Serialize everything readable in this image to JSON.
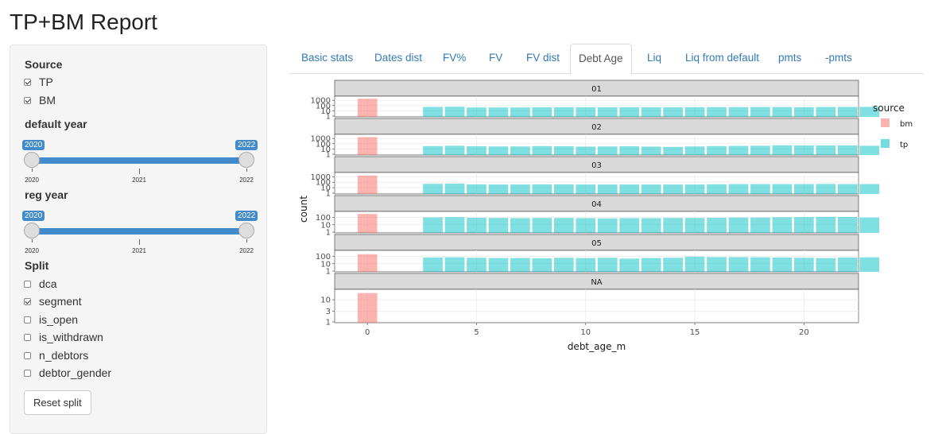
{
  "title": "TP+BM Report",
  "sidebar": {
    "source_label": "Source",
    "sources": [
      {
        "label": "TP",
        "checked": true
      },
      {
        "label": "BM",
        "checked": true
      }
    ],
    "default_year": {
      "label": "default year",
      "min": 2020,
      "max": 2022,
      "from": "2020",
      "to": "2022",
      "ticks": [
        "2020",
        "2021",
        "2022"
      ]
    },
    "reg_year": {
      "label": "reg year",
      "min": 2020,
      "max": 2022,
      "from": "2020",
      "to": "2022",
      "ticks": [
        "2020",
        "2021",
        "2022"
      ]
    },
    "split_label": "Split",
    "splits": [
      {
        "label": "dca",
        "checked": false
      },
      {
        "label": "segment",
        "checked": true
      },
      {
        "label": "is_open",
        "checked": false
      },
      {
        "label": "is_withdrawn",
        "checked": false
      },
      {
        "label": "n_debtors",
        "checked": false
      },
      {
        "label": "debtor_gender",
        "checked": false
      }
    ],
    "reset_label": "Reset split"
  },
  "tabs": [
    {
      "label": "Basic stats",
      "active": false
    },
    {
      "label": "Dates dist",
      "active": false
    },
    {
      "label": "FV%",
      "active": false
    },
    {
      "label": "FV",
      "active": false
    },
    {
      "label": "FV dist",
      "active": false
    },
    {
      "label": "Debt Age",
      "active": true
    },
    {
      "label": "Liq",
      "active": false
    },
    {
      "label": "Liq from default",
      "active": false
    },
    {
      "label": "pmts",
      "active": false
    },
    {
      "label": "-pmts",
      "active": false
    }
  ],
  "chart_data": {
    "type": "bar",
    "xlabel": "debt_age_m",
    "ylabel": "count",
    "x_ticks": [
      0,
      5,
      10,
      15,
      20
    ],
    "xlim": [
      -1.5,
      22.5
    ],
    "y_scale": "log10",
    "legend": {
      "title": "source",
      "position": "right",
      "entries": [
        {
          "name": "bm",
          "color": "#f8766d"
        },
        {
          "name": "tp",
          "color": "#00bfc4"
        }
      ]
    },
    "facets": [
      {
        "label": "01",
        "y_ticks": [
          "1",
          "10",
          "100",
          "1000"
        ],
        "ylim": [
          1,
          3000
        ],
        "bm": [
          {
            "x": 0,
            "y": 2000
          }
        ],
        "tp": [
          55,
          60,
          42,
          42,
          42,
          45,
          48,
          45,
          45,
          48,
          45,
          45,
          48,
          50,
          50,
          52,
          52,
          48,
          52,
          55,
          55
        ]
      },
      {
        "label": "02",
        "y_ticks": [
          "1",
          "10",
          "100",
          "1000"
        ],
        "ylim": [
          1,
          3000
        ],
        "bm": [
          {
            "x": 0,
            "y": 1800
          }
        ],
        "tp": [
          35,
          40,
          32,
          30,
          30,
          35,
          32,
          28,
          30,
          32,
          28,
          25,
          30,
          35,
          38,
          40,
          50,
          45,
          45,
          48,
          40
        ]
      },
      {
        "label": "03",
        "y_ticks": [
          "1",
          "10",
          "100",
          "1000"
        ],
        "ylim": [
          1,
          3000
        ],
        "bm": [
          {
            "x": 0,
            "y": 1600
          }
        ],
        "tp": [
          50,
          55,
          40,
          38,
          38,
          40,
          40,
          38,
          38,
          38,
          38,
          38,
          38,
          42,
          45,
          45,
          45,
          45,
          48,
          45,
          45
        ]
      },
      {
        "label": "04",
        "y_ticks": [
          "1",
          "10",
          "100"
        ],
        "ylim": [
          1,
          400
        ],
        "bm": [
          {
            "x": 0,
            "y": 300
          }
        ],
        "tp": [
          100,
          110,
          90,
          85,
          80,
          85,
          85,
          80,
          75,
          80,
          80,
          85,
          85,
          90,
          95,
          95,
          105,
          110,
          120,
          115,
          100
        ]
      },
      {
        "label": "05",
        "y_ticks": [
          "1",
          "10",
          "100"
        ],
        "ylim": [
          1,
          400
        ],
        "bm": [
          {
            "x": 0,
            "y": 200
          }
        ],
        "tp": [
          70,
          75,
          65,
          60,
          60,
          55,
          65,
          60,
          65,
          50,
          60,
          65,
          90,
          80,
          80,
          75,
          70,
          65,
          60,
          70,
          75
        ]
      },
      {
        "label": "NA",
        "y_ticks": [
          "1",
          "3",
          "10"
        ],
        "ylim": [
          1,
          25
        ],
        "bm": [
          {
            "x": 0,
            "y": 20
          }
        ],
        "tp": []
      }
    ]
  }
}
